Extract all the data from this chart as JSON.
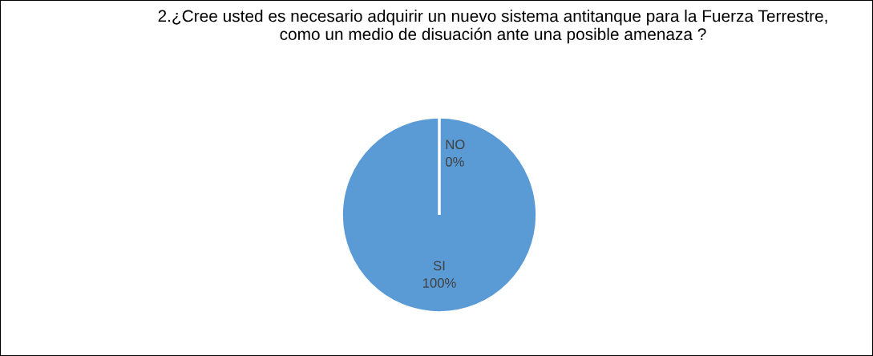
{
  "chart_data": {
    "type": "pie",
    "title": "2.¿Cree usted es necesario adquirir un nuevo sistema antitanque para la Fuerza Terrestre, como un medio de disuación ante una posible amenaza ?",
    "categories": [
      "SI",
      "NO"
    ],
    "values": [
      100,
      0
    ],
    "colors": [
      "#5b9bd5",
      "#ed7d31"
    ],
    "value_labels": [
      "100%",
      "0%"
    ],
    "legend": false
  }
}
